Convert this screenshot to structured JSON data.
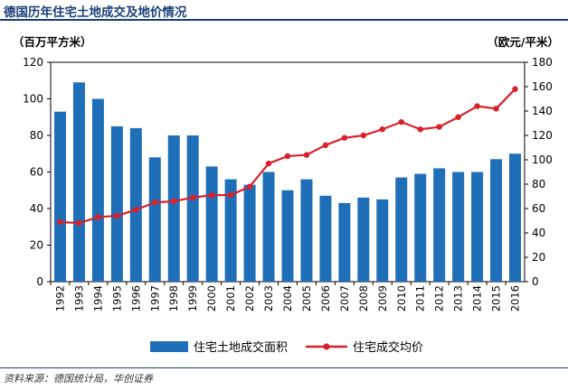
{
  "header": {
    "title": "德国历年住宅土地成交及地价情况"
  },
  "source": {
    "text": "资料来源：德国统计局，华创证券"
  },
  "chart_data": {
    "type": "bar",
    "title": "德国历年住宅土地成交及地价情况",
    "categories": [
      "1992",
      "1993",
      "1994",
      "1995",
      "1996",
      "1997",
      "1998",
      "1999",
      "2000",
      "2001",
      "2002",
      "2003",
      "2004",
      "2005",
      "2006",
      "2007",
      "2008",
      "2009",
      "2010",
      "2011",
      "2012",
      "2013",
      "2014",
      "2015",
      "2016"
    ],
    "series": [
      {
        "name": "住宅土地成交面积",
        "type": "bar",
        "axis": "left",
        "color": "#1f6fb8",
        "values": [
          93,
          109,
          100,
          85,
          84,
          68,
          80,
          80,
          63,
          56,
          53,
          60,
          50,
          56,
          47,
          43,
          46,
          45,
          57,
          59,
          62,
          60,
          60,
          67,
          70
        ]
      },
      {
        "name": "住宅成交均价",
        "type": "line",
        "axis": "right",
        "color": "#d9202a",
        "values": [
          49,
          48,
          53,
          54,
          59,
          65,
          66,
          69,
          71,
          71,
          78,
          97,
          103,
          104,
          112,
          118,
          120,
          125,
          131,
          125,
          127,
          135,
          144,
          142,
          158
        ]
      }
    ],
    "y_left": {
      "label": "（百万平方米）",
      "ylim": [
        0,
        120
      ],
      "ticks": [
        0,
        20,
        40,
        60,
        80,
        100,
        120
      ]
    },
    "y_right": {
      "label": "（欧元/平米）",
      "ylim": [
        0,
        180
      ],
      "ticks": [
        0,
        20,
        40,
        60,
        80,
        100,
        120,
        140,
        160,
        180
      ]
    },
    "grid": false,
    "legend": "bottom"
  }
}
